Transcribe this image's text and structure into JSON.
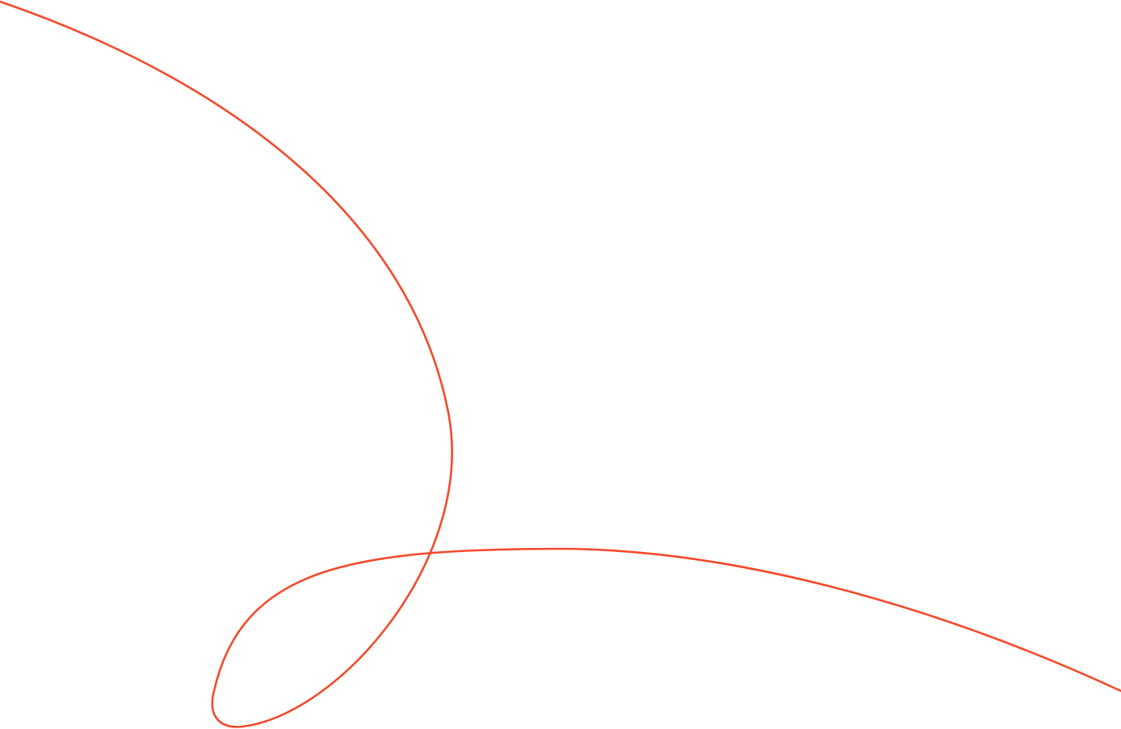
{
  "colors": {
    "background": "#ffffff",
    "curve": "#f4492b"
  }
}
